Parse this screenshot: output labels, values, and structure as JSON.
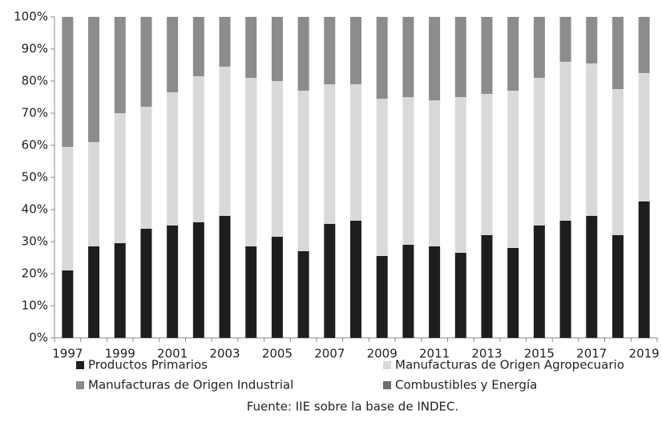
{
  "chart_data": {
    "type": "stacked_bar",
    "categories": [
      "1997",
      null,
      "1999",
      null,
      "2001",
      null,
      "2003",
      null,
      "2005",
      null,
      "2007",
      null,
      "2009",
      null,
      "2011",
      null,
      "2013",
      null,
      "2015",
      null,
      "2017",
      null,
      "2019"
    ],
    "series": [
      {
        "name": "Productos Primarios",
        "color": "#1e1e1e",
        "values": [
          21,
          28.5,
          29.5,
          34,
          35,
          36,
          38,
          28.5,
          31.5,
          27,
          35.5,
          36.5,
          25.5,
          29,
          28.5,
          26.5,
          32,
          28,
          35,
          36.5,
          38,
          32,
          42.5
        ]
      },
      {
        "name": "Manufacturas de Origen Agropecuario",
        "color": "#d9d9d9",
        "values": [
          38.5,
          32.5,
          40.5,
          38,
          41.5,
          45.5,
          46.5,
          52.5,
          48.5,
          50,
          43.5,
          42.5,
          49,
          46,
          45.5,
          48.5,
          44,
          49,
          46,
          49.5,
          47.5,
          45.5,
          40
        ]
      },
      {
        "name": "Manufacturas de Origen Industrial",
        "color": "#8c8c8c",
        "values": [
          40.5,
          39,
          30,
          28,
          23.5,
          18.5,
          15.5,
          19,
          20,
          23,
          21,
          21,
          25.5,
          25,
          26,
          25,
          24,
          23,
          19,
          14,
          14.5,
          22.5,
          17.5
        ]
      },
      {
        "name": "Combustibles y Energía",
        "color": "#6f6f6f",
        "values": [
          0,
          0,
          0,
          0,
          0,
          0,
          0,
          0,
          0,
          0,
          0,
          0,
          0,
          0,
          0,
          0,
          0,
          0,
          0,
          0,
          0,
          0,
          0
        ]
      }
    ],
    "ylim": [
      0,
      100
    ],
    "yticks": [
      {
        "value": 0,
        "label": "0%"
      },
      {
        "value": 10,
        "label": "10%"
      },
      {
        "value": 20,
        "label": "20%"
      },
      {
        "value": 30,
        "label": "30%"
      },
      {
        "value": 40,
        "label": "40%"
      },
      {
        "value": 50,
        "label": "50%"
      },
      {
        "value": 60,
        "label": "60%"
      },
      {
        "value": 70,
        "label": "70%"
      },
      {
        "value": 80,
        "label": "80%"
      },
      {
        "value": 90,
        "label": "90%"
      },
      {
        "value": 100,
        "label": "100%"
      }
    ],
    "source": "Fuente: IIE sobre la base de INDEC."
  }
}
